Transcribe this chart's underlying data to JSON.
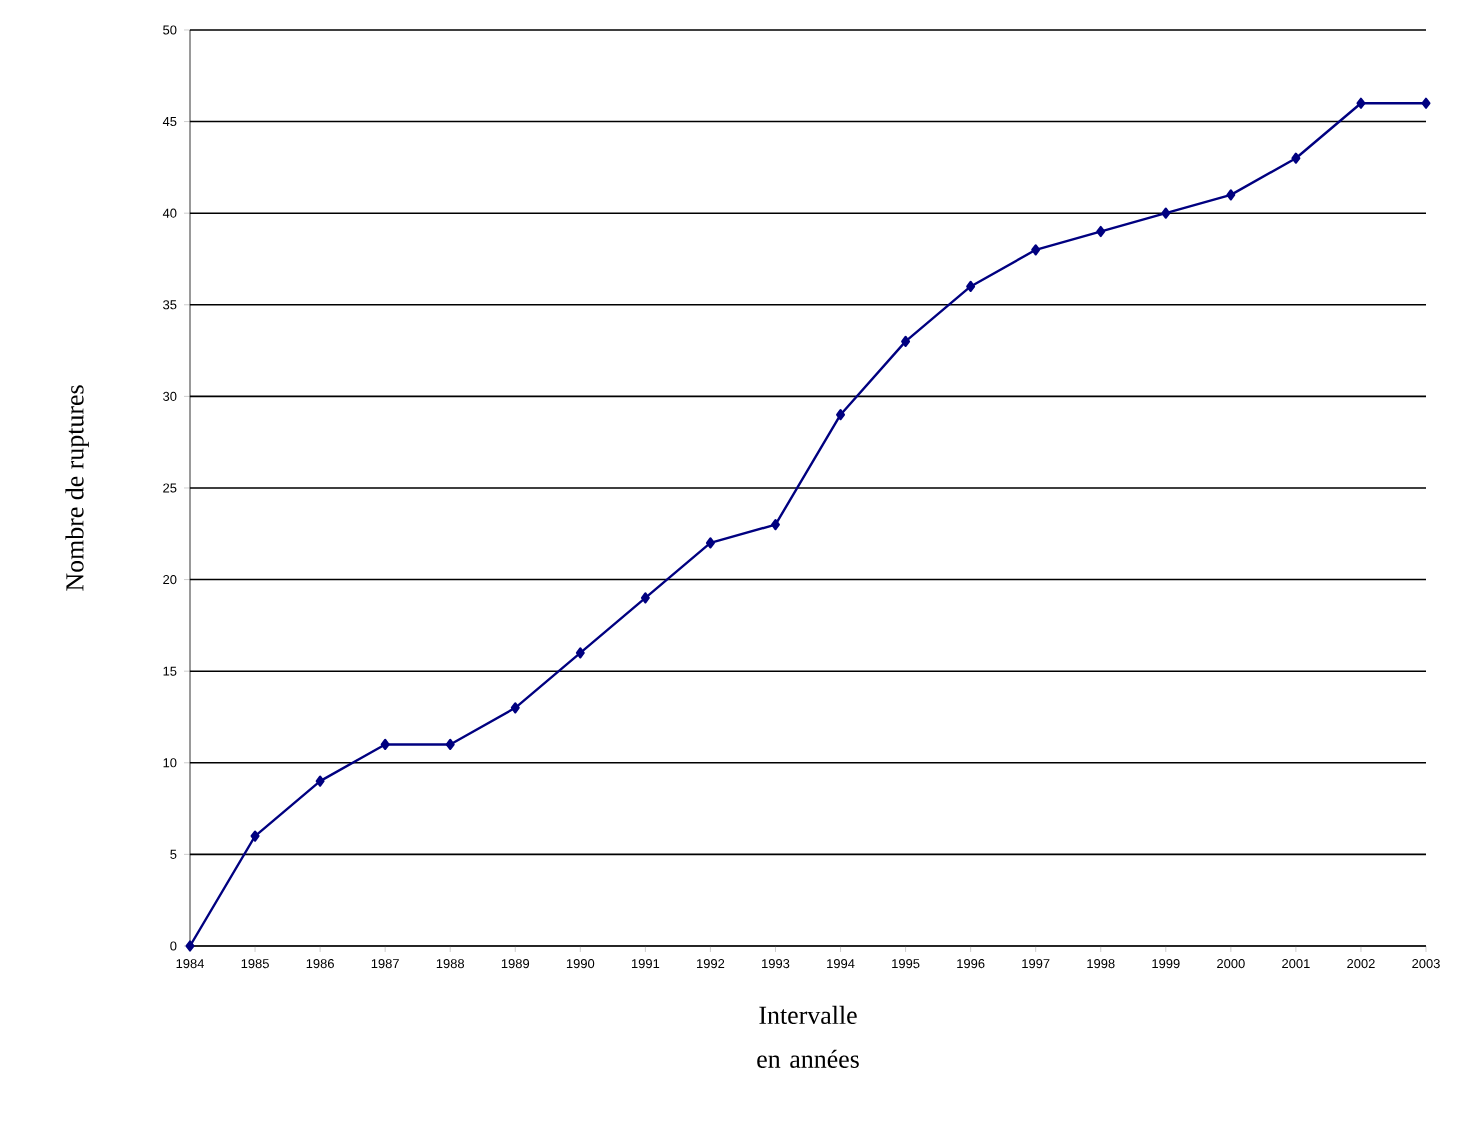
{
  "chart_data": {
    "type": "line",
    "xlabel": "Intervalle en années",
    "ylabel": "Nombre de ruptures",
    "categories": [
      "1984",
      "1985",
      "1986",
      "1987",
      "1988",
      "1989",
      "1990",
      "1991",
      "1992",
      "1993",
      "1994",
      "1995",
      "1996",
      "1997",
      "1998",
      "1999",
      "2000",
      "2001",
      "2002",
      "2003"
    ],
    "series": [
      {
        "color": "#000080",
        "values": [
          0,
          6,
          9,
          11,
          11,
          13,
          16,
          19,
          22,
          23,
          29,
          33,
          36,
          38,
          39,
          40,
          41,
          43,
          46,
          46
        ]
      }
    ],
    "ylim": [
      0,
      50
    ],
    "yticks": [
      0,
      5,
      10,
      15,
      20,
      25,
      30,
      35,
      40,
      45,
      50
    ],
    "grid": "y",
    "marker": "diamond",
    "line_style": "solid"
  }
}
